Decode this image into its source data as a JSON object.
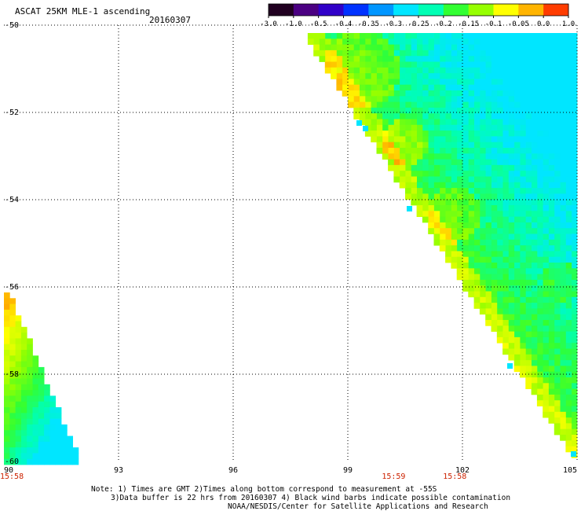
{
  "header": {
    "title": "ASCAT 25KM MLE-1 ascending",
    "date": "20160307"
  },
  "colorbar": {
    "ticks": [
      "-3.0",
      "-1.0",
      "-0.5",
      "-0.4",
      "-0.35",
      "-0.3",
      "-0.25",
      "-0.2",
      "-0.15",
      "-0.1",
      "-0.05",
      "0.0",
      "1.0"
    ],
    "colors": [
      "#200020",
      "#4b0082",
      "#3000c8",
      "#0032ff",
      "#0096ff",
      "#00e6ff",
      "#00ffb4",
      "#32ff32",
      "#96ff00",
      "#ffff00",
      "#ffb400",
      "#ff3c00"
    ]
  },
  "chart_data": {
    "type": "heatmap",
    "title": "ASCAT 25KM MLE-1 ascending",
    "subtitle": "20160307",
    "xlabel": "",
    "ylabel": "",
    "xlim": [
      90,
      105
    ],
    "ylim": [
      -60,
      -50
    ],
    "x_ticks": [
      "90",
      "93",
      "96",
      "99",
      "102",
      "105"
    ],
    "y_ticks": [
      "-50",
      "-52",
      "-54",
      "-56",
      "-58",
      "-60"
    ],
    "grid": true,
    "time_labels": [
      {
        "x": 90,
        "text": "15:58"
      },
      {
        "x": 100.2,
        "text": "15:59"
      },
      {
        "x": 101.8,
        "text": "15:58"
      }
    ],
    "swaths": [
      {
        "name": "east swath",
        "region": "triangle lon 98.7-105, lat -50 to -60",
        "dominant_range": "-0.25 to -0.05"
      },
      {
        "name": "west swath",
        "region": "triangle lon 90-91.9, lat -56.5 to -60",
        "dominant_range": "-0.2 to 0.0"
      }
    ]
  },
  "notes": {
    "line1": "Note: 1) Times are GMT 2)Times along bottom correspond to measurement at -55S",
    "line2": "3)Data buffer is 22 hrs from 20160307 4) Black wind barbs indicate possible contamination",
    "line3": "NOAA/NESDIS/Center for Satellite Applications and Research"
  }
}
